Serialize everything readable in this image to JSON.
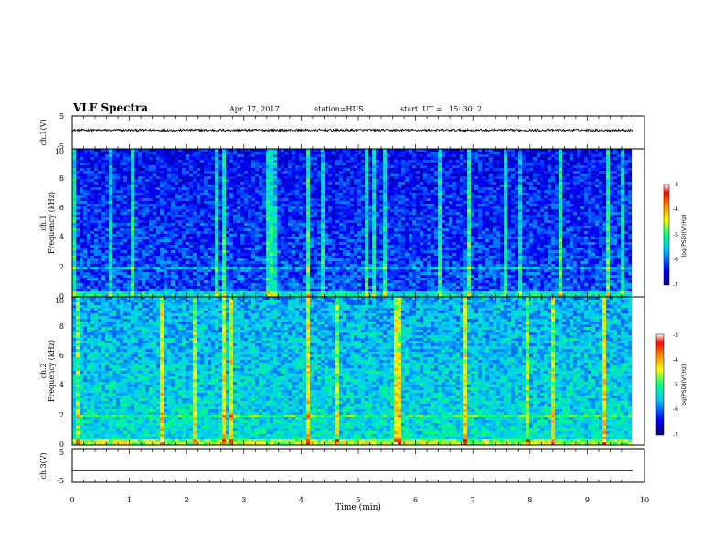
{
  "header": {
    "title": "VLF Spectra",
    "date": "Apr. 17, 2017",
    "station": "station=HUS",
    "start_ut": "start  UT =   15: 30: 2"
  },
  "chart_data": [
    {
      "type": "line",
      "name": "ch1-waveform",
      "ylabel": "ch.1(V)",
      "yticklabels": [
        "5",
        "-5"
      ],
      "ylim": [
        -5,
        5
      ],
      "xlim": [
        0,
        10
      ],
      "baseline": 0.7,
      "noise_amplitude": 0.35,
      "signal_end_min": 9.8
    },
    {
      "type": "heatmap",
      "name": "ch1-spectrogram",
      "ylabel": "Frequency (kHz)",
      "ylabel_prefix": "ch.1",
      "yticklabels": [
        "0",
        "2",
        "4",
        "6",
        "8",
        "10"
      ],
      "ylim": [
        0,
        10
      ],
      "xlim": [
        0,
        10
      ],
      "signal_end_min": 9.8,
      "colorbar": {
        "label": "log(PSD)(V²/Hz)",
        "range": [
          -7,
          -3
        ],
        "ticklabels": [
          "-3",
          "-4",
          "-5",
          "-6",
          "-7"
        ]
      }
    },
    {
      "type": "heatmap",
      "name": "ch2-spectrogram",
      "ylabel": "Frequency (kHz)",
      "ylabel_prefix": "ch.2",
      "yticklabels": [
        "0",
        "2",
        "4",
        "6",
        "8",
        "10"
      ],
      "ylim": [
        0,
        10
      ],
      "xlim": [
        0,
        10
      ],
      "signal_end_min": 9.8,
      "colorbar": {
        "label": "log(PSD)(V²/Hz)",
        "range": [
          -7,
          -3
        ],
        "ticklabels": [
          "-3",
          "-4",
          "-5",
          "-6",
          "-7"
        ]
      }
    },
    {
      "type": "line",
      "name": "ch3-waveform",
      "ylabel": "ch.3(V)",
      "yticklabels": [
        "5",
        "-5"
      ],
      "ylim": [
        -5,
        5
      ],
      "xlim": [
        0,
        10
      ],
      "baseline": -1.5,
      "signal_end_min": 9.8
    }
  ],
  "xaxis": {
    "label": "Time (min)",
    "ticklabels": [
      "0",
      "1",
      "2",
      "3",
      "4",
      "5",
      "6",
      "7",
      "8",
      "9",
      "10"
    ],
    "range": [
      0,
      10
    ]
  }
}
